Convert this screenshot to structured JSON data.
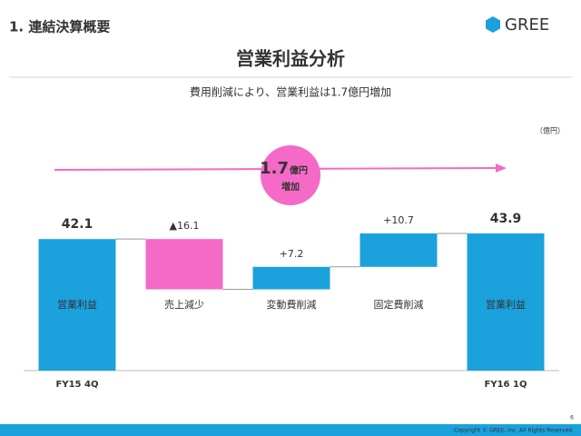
{
  "header": {
    "section": "1. 連結決算概要",
    "logo": "GREE"
  },
  "chart_data": {
    "type": "waterfall",
    "title": "営業利益分析",
    "subtitle": "費用削減により、営業利益は1.7億円増加",
    "unit_label": "（億円）",
    "annotation": {
      "amount": "1.7",
      "unit": "億円",
      "text": "増加"
    },
    "categories": [
      "営業利益",
      "売上減少",
      "変動費削減",
      "固定費削減",
      "営業利益"
    ],
    "periods": [
      "FY15 4Q",
      null,
      null,
      null,
      "FY16 1Q"
    ],
    "values": [
      42.1,
      -16.1,
      7.2,
      10.7,
      43.9
    ],
    "value_labels": [
      "42.1",
      "▲16.1",
      "+7.2",
      "+10.7",
      "43.9"
    ],
    "totals": [
      true,
      false,
      false,
      false,
      true
    ],
    "colors": {
      "total": "#1ba1dc",
      "increase": "#1ba1dc",
      "decrease": "#f46ac6"
    },
    "ylim": [
      0,
      50
    ]
  },
  "footer": {
    "copyright": "Copyright © GREE, Inc. All Rights Reserved.",
    "page": "6"
  }
}
